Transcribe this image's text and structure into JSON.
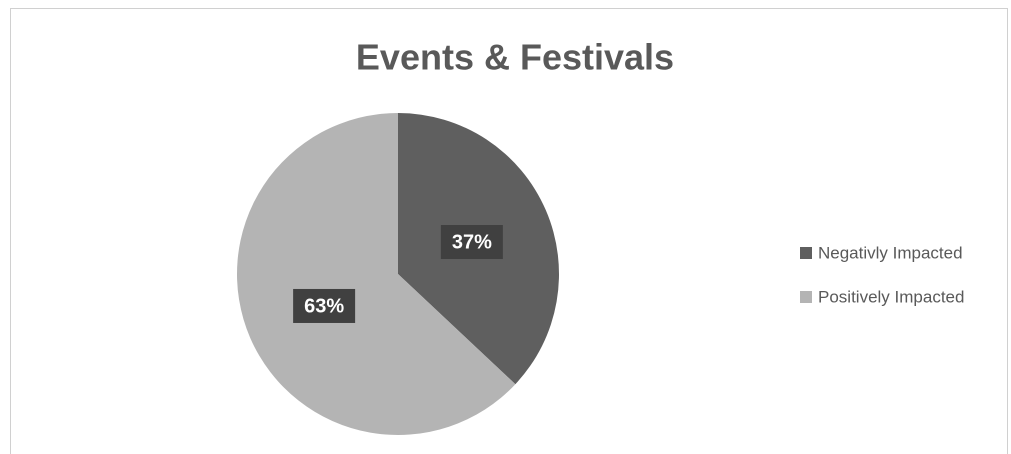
{
  "chart_data": {
    "type": "pie",
    "title": "Events & Festivals",
    "categories": [
      "Negativly Impacted",
      "Positively Impacted"
    ],
    "values": [
      37,
      63
    ],
    "value_labels": [
      "37%",
      "63%"
    ],
    "colors": [
      "#5f5f5f",
      "#b4b4b4"
    ],
    "legend": "right"
  }
}
